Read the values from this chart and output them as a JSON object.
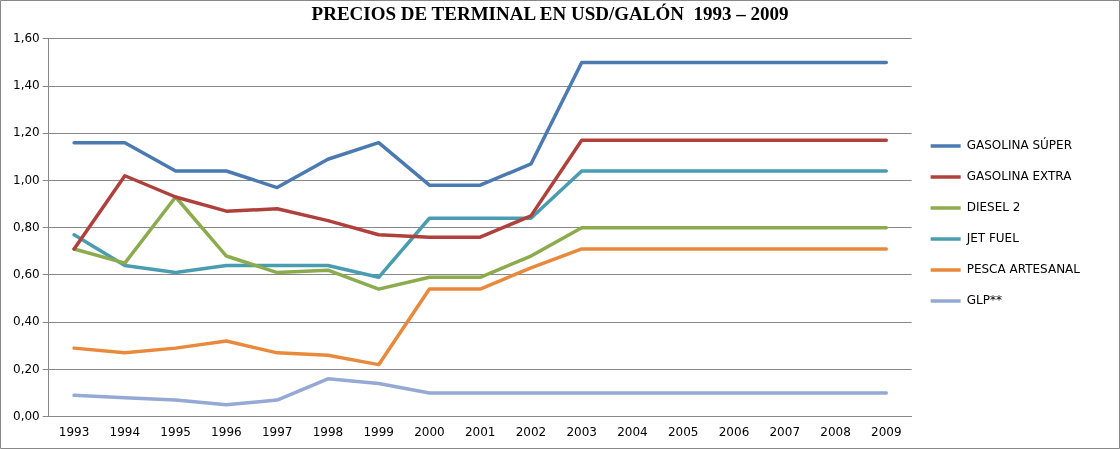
{
  "chart_data": {
    "type": "line",
    "title": "PRECIOS DE TERMINAL EN USD/GALÓN  1993 – 2009",
    "categories": [
      "1993",
      "1994",
      "1995",
      "1996",
      "1997",
      "1998",
      "1999",
      "2000",
      "2001",
      "2002",
      "2003",
      "2004",
      "2005",
      "2006",
      "2007",
      "2008",
      "2009"
    ],
    "series": [
      {
        "name": "GASOLINA SÚPER",
        "color": "#4a7ab0",
        "values": [
          1.16,
          1.16,
          1.04,
          1.04,
          0.97,
          1.09,
          1.16,
          0.98,
          0.98,
          1.07,
          1.5,
          1.5,
          1.5,
          1.5,
          1.5,
          1.5,
          1.5
        ]
      },
      {
        "name": "GASOLINA EXTRA",
        "color": "#b0403c",
        "values": [
          0.71,
          1.02,
          0.93,
          0.87,
          0.88,
          0.83,
          0.77,
          0.76,
          0.76,
          0.85,
          1.17,
          1.17,
          1.17,
          1.17,
          1.17,
          1.17,
          1.17
        ]
      },
      {
        "name": "DIESEL 2",
        "color": "#8bab4c",
        "values": [
          0.71,
          0.65,
          0.93,
          0.68,
          0.61,
          0.62,
          0.54,
          0.59,
          0.59,
          0.68,
          0.8,
          0.8,
          0.8,
          0.8,
          0.8,
          0.8,
          0.8
        ]
      },
      {
        "name": "JET FUEL",
        "color": "#4a9cb0",
        "values": [
          0.77,
          0.64,
          0.61,
          0.64,
          0.64,
          0.64,
          0.59,
          0.84,
          0.84,
          0.84,
          1.04,
          1.04,
          1.04,
          1.04,
          1.04,
          1.04,
          1.04
        ]
      },
      {
        "name": "PESCA ARTESANAL",
        "color": "#e8893c",
        "values": [
          0.29,
          0.27,
          0.29,
          0.32,
          0.27,
          0.26,
          0.22,
          0.54,
          0.54,
          0.63,
          0.71,
          0.71,
          0.71,
          0.71,
          0.71,
          0.71,
          0.71
        ]
      },
      {
        "name": "GLP**",
        "color": "#94a9d4",
        "values": [
          0.09,
          0.08,
          0.07,
          0.05,
          0.07,
          0.16,
          0.14,
          0.1,
          0.1,
          0.1,
          0.1,
          0.1,
          0.1,
          0.1,
          0.1,
          0.1,
          0.1
        ]
      }
    ],
    "ylim": [
      0,
      1.6
    ],
    "yticks": [
      {
        "value": 0,
        "label": "0,00"
      },
      {
        "value": 0.2,
        "label": "0,20"
      },
      {
        "value": 0.4,
        "label": "0,40"
      },
      {
        "value": 0.6,
        "label": "0,60"
      },
      {
        "value": 0.8,
        "label": "0,80"
      },
      {
        "value": 1,
        "label": "1,00"
      },
      {
        "value": 1.2,
        "label": "1,20"
      },
      {
        "value": 1.4,
        "label": "1,40"
      },
      {
        "value": 1.6,
        "label": "1,60"
      }
    ],
    "grid": "y",
    "legend": "right",
    "marker": "none",
    "line_style": "solid"
  }
}
